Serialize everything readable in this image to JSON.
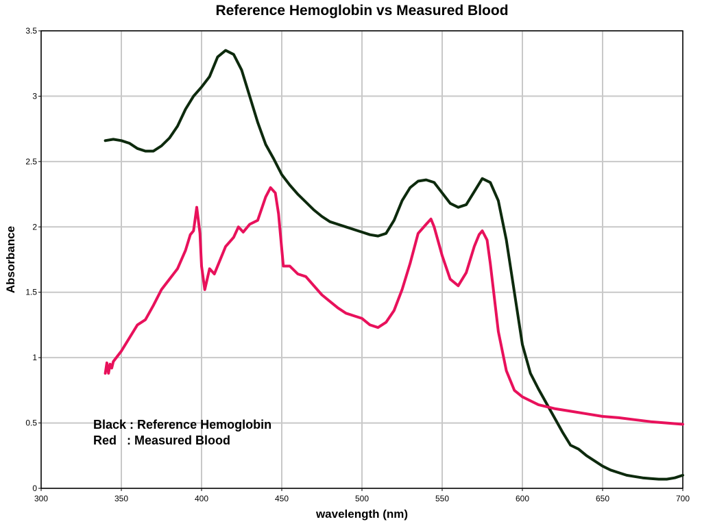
{
  "chart_data": {
    "type": "line",
    "title": "Reference Hemoglobin vs Measured Blood",
    "xlabel": "wavelength (nm)",
    "ylabel": "Absorbance",
    "xlim": [
      300,
      700
    ],
    "ylim": [
      0,
      3.5
    ],
    "grid": true,
    "x_ticks": [
      300,
      350,
      400,
      450,
      500,
      550,
      600,
      650,
      700
    ],
    "y_ticks": [
      0,
      0.5,
      1,
      1.5,
      2,
      2.5,
      3,
      3.5
    ],
    "x_tick_labels": [
      "300",
      "350",
      "400",
      "450",
      "500",
      "550",
      "600",
      "650",
      "700"
    ],
    "y_tick_labels": [
      "0",
      "0.5",
      "1",
      "1.5",
      "2",
      "2.5",
      "3",
      "3.5"
    ],
    "annotations": [
      {
        "text": "Black : Reference Hemoglobin"
      },
      {
        "text": "Red   : Measured Blood"
      }
    ],
    "series": [
      {
        "color": "#0d2a0d",
        "points": [
          [
            340,
            2.66
          ],
          [
            345,
            2.67
          ],
          [
            350,
            2.66
          ],
          [
            355,
            2.64
          ],
          [
            360,
            2.6
          ],
          [
            365,
            2.58
          ],
          [
            370,
            2.58
          ],
          [
            375,
            2.62
          ],
          [
            380,
            2.68
          ],
          [
            385,
            2.77
          ],
          [
            390,
            2.9
          ],
          [
            395,
            3.0
          ],
          [
            400,
            3.07
          ],
          [
            405,
            3.15
          ],
          [
            410,
            3.3
          ],
          [
            415,
            3.35
          ],
          [
            420,
            3.32
          ],
          [
            425,
            3.2
          ],
          [
            430,
            3.0
          ],
          [
            435,
            2.8
          ],
          [
            440,
            2.63
          ],
          [
            445,
            2.52
          ],
          [
            450,
            2.4
          ],
          [
            455,
            2.32
          ],
          [
            460,
            2.25
          ],
          [
            465,
            2.19
          ],
          [
            470,
            2.13
          ],
          [
            475,
            2.08
          ],
          [
            480,
            2.04
          ],
          [
            485,
            2.02
          ],
          [
            490,
            2.0
          ],
          [
            495,
            1.98
          ],
          [
            500,
            1.96
          ],
          [
            505,
            1.94
          ],
          [
            510,
            1.93
          ],
          [
            515,
            1.95
          ],
          [
            520,
            2.05
          ],
          [
            525,
            2.2
          ],
          [
            530,
            2.3
          ],
          [
            535,
            2.35
          ],
          [
            540,
            2.36
          ],
          [
            545,
            2.34
          ],
          [
            550,
            2.26
          ],
          [
            555,
            2.18
          ],
          [
            560,
            2.15
          ],
          [
            565,
            2.17
          ],
          [
            570,
            2.27
          ],
          [
            575,
            2.37
          ],
          [
            580,
            2.34
          ],
          [
            585,
            2.2
          ],
          [
            590,
            1.9
          ],
          [
            595,
            1.5
          ],
          [
            600,
            1.1
          ],
          [
            605,
            0.88
          ],
          [
            610,
            0.76
          ],
          [
            615,
            0.65
          ],
          [
            620,
            0.54
          ],
          [
            625,
            0.43
          ],
          [
            630,
            0.33
          ],
          [
            635,
            0.3
          ],
          [
            640,
            0.25
          ],
          [
            645,
            0.21
          ],
          [
            650,
            0.17
          ],
          [
            655,
            0.14
          ],
          [
            660,
            0.12
          ],
          [
            665,
            0.1
          ],
          [
            670,
            0.09
          ],
          [
            675,
            0.08
          ],
          [
            680,
            0.075
          ],
          [
            685,
            0.07
          ],
          [
            690,
            0.07
          ],
          [
            695,
            0.08
          ],
          [
            700,
            0.1
          ]
        ]
      },
      {
        "color": "#e8115b",
        "points": [
          [
            340,
            0.88
          ],
          [
            341,
            0.96
          ],
          [
            342,
            0.88
          ],
          [
            343,
            0.95
          ],
          [
            344,
            0.92
          ],
          [
            345,
            0.97
          ],
          [
            350,
            1.05
          ],
          [
            355,
            1.15
          ],
          [
            360,
            1.25
          ],
          [
            365,
            1.29
          ],
          [
            370,
            1.4
          ],
          [
            375,
            1.52
          ],
          [
            380,
            1.6
          ],
          [
            385,
            1.68
          ],
          [
            390,
            1.82
          ],
          [
            393,
            1.94
          ],
          [
            395,
            1.97
          ],
          [
            397,
            2.15
          ],
          [
            399,
            1.95
          ],
          [
            400,
            1.7
          ],
          [
            402,
            1.52
          ],
          [
            405,
            1.68
          ],
          [
            408,
            1.64
          ],
          [
            410,
            1.7
          ],
          [
            415,
            1.85
          ],
          [
            420,
            1.92
          ],
          [
            423,
            2.0
          ],
          [
            426,
            1.96
          ],
          [
            430,
            2.02
          ],
          [
            435,
            2.05
          ],
          [
            440,
            2.23
          ],
          [
            443,
            2.3
          ],
          [
            446,
            2.26
          ],
          [
            448,
            2.1
          ],
          [
            451,
            1.7
          ],
          [
            455,
            1.7
          ],
          [
            460,
            1.64
          ],
          [
            465,
            1.62
          ],
          [
            470,
            1.55
          ],
          [
            475,
            1.48
          ],
          [
            480,
            1.43
          ],
          [
            485,
            1.38
          ],
          [
            490,
            1.34
          ],
          [
            495,
            1.32
          ],
          [
            500,
            1.3
          ],
          [
            505,
            1.25
          ],
          [
            510,
            1.23
          ],
          [
            515,
            1.27
          ],
          [
            520,
            1.36
          ],
          [
            525,
            1.52
          ],
          [
            530,
            1.72
          ],
          [
            535,
            1.95
          ],
          [
            540,
            2.02
          ],
          [
            543,
            2.06
          ],
          [
            545,
            2.0
          ],
          [
            550,
            1.78
          ],
          [
            555,
            1.6
          ],
          [
            560,
            1.55
          ],
          [
            565,
            1.65
          ],
          [
            570,
            1.85
          ],
          [
            573,
            1.94
          ],
          [
            575,
            1.97
          ],
          [
            578,
            1.9
          ],
          [
            580,
            1.72
          ],
          [
            585,
            1.2
          ],
          [
            590,
            0.9
          ],
          [
            595,
            0.75
          ],
          [
            600,
            0.7
          ],
          [
            610,
            0.64
          ],
          [
            620,
            0.61
          ],
          [
            630,
            0.59
          ],
          [
            640,
            0.57
          ],
          [
            650,
            0.55
          ],
          [
            660,
            0.54
          ],
          [
            670,
            0.525
          ],
          [
            680,
            0.51
          ],
          [
            690,
            0.5
          ],
          [
            700,
            0.49
          ]
        ]
      }
    ]
  }
}
